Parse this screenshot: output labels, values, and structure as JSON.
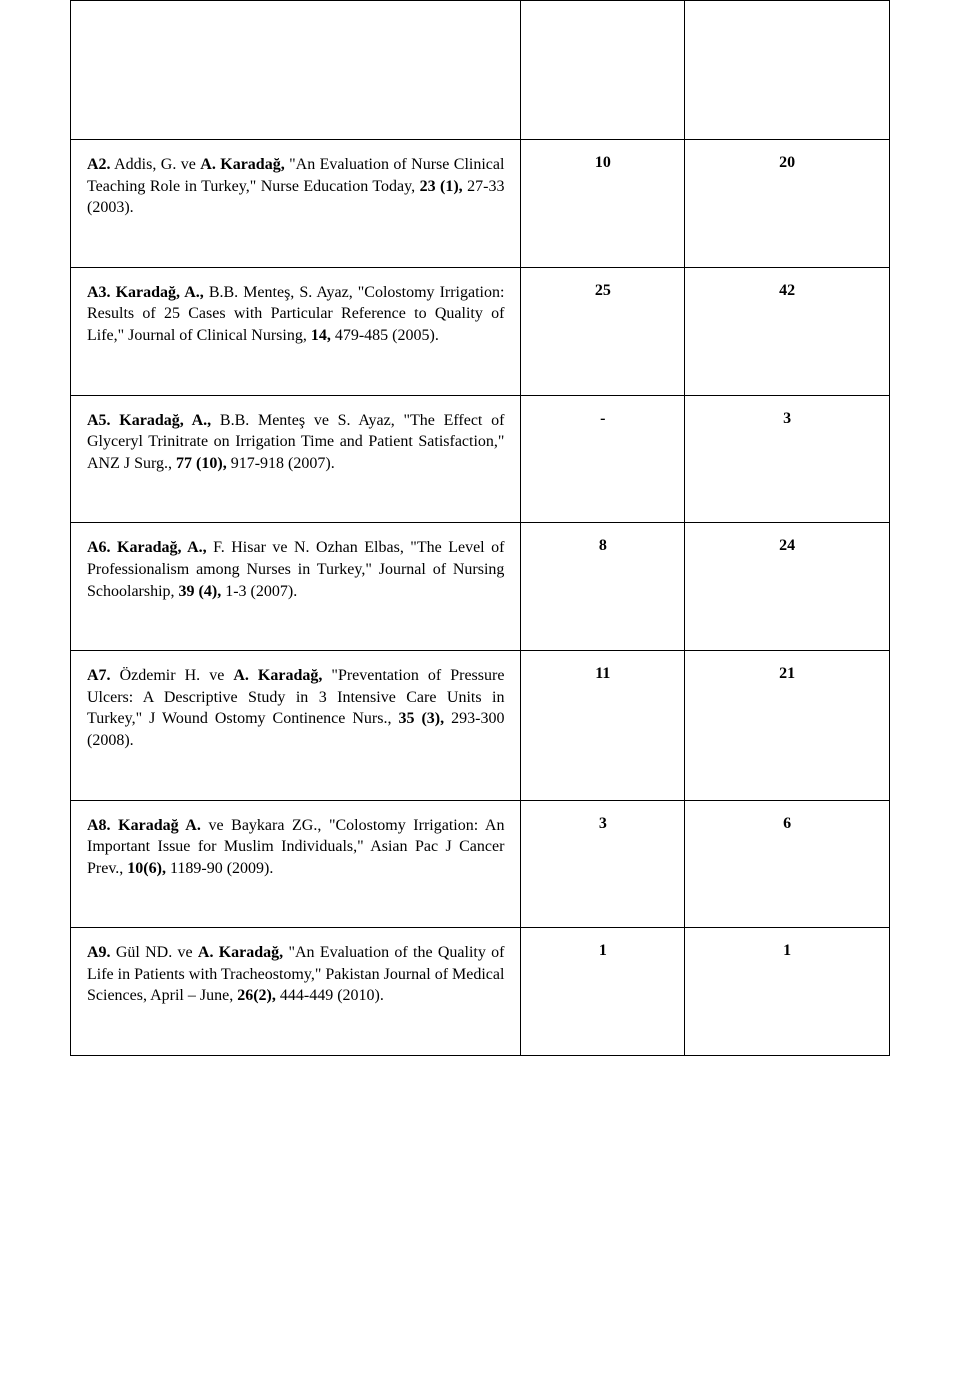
{
  "text_color": "#000000",
  "border_color": "#000000",
  "background_color": "#ffffff",
  "font_family": "Times New Roman",
  "rows": [
    {
      "ref_pre": "",
      "ref_bold1": "A2.",
      "ref_mid1": " Addis, G. ve ",
      "ref_bold2": "A. Karadağ,",
      "ref_mid2": " \"An Evaluation of Nurse Clinical Teaching Role in Turkey,\" Nurse Education Today, ",
      "ref_bold3": "23 (1),",
      "ref_tail": " 27-33 (2003).",
      "col2": "10",
      "col3": "20"
    },
    {
      "ref_pre": "",
      "ref_bold1": "A3. Karadağ, A.,",
      "ref_mid1": " B.B. Menteş, S. Ayaz, \"Colostomy Irrigation: Results of 25 Cases with Particular Reference to Quality of Life,\" Journal of Clinical Nursing, ",
      "ref_bold2": "14,",
      "ref_mid2": " 479-485 (2005).",
      "ref_bold3": "",
      "ref_tail": "",
      "col2": "25",
      "col3": "42"
    },
    {
      "ref_pre": "",
      "ref_bold1": "A5. Karadağ, A.,",
      "ref_mid1": " B.B. Menteş ve S. Ayaz, \"The Effect of Glyceryl Trinitrate on Irrigation Time and Patient Satisfaction,\" ANZ J Surg., ",
      "ref_bold2": "77 (10),",
      "ref_mid2": " 917-918 (2007).",
      "ref_bold3": "",
      "ref_tail": "",
      "col2": "-",
      "col3": "3"
    },
    {
      "ref_pre": "",
      "ref_bold1": "A6. Karadağ, A.,",
      "ref_mid1": " F. Hisar ve N. Ozhan Elbas, \"The Level of  Professionalism among Nurses in Turkey,\" Journal of Nursing Schoolarship, ",
      "ref_bold2": "39 (4),",
      "ref_mid2": " 1-3 (2007).",
      "ref_bold3": "",
      "ref_tail": "",
      "col2": "8",
      "col3": "24"
    },
    {
      "ref_pre": "",
      "ref_bold1": "A7.",
      "ref_mid1": " Özdemir H. ve ",
      "ref_bold2": "A. Karadağ,",
      "ref_mid2": " \"Preventation of Pressure Ulcers: A Descriptive Study in 3 Intensive Care Units in Turkey,\" J Wound Ostomy Continence Nurs., ",
      "ref_bold3": "35 (3),",
      "ref_tail": " 293-300 (2008).",
      "col2": "11",
      "col3": "21"
    },
    {
      "ref_pre": "",
      "ref_bold1": "A8. Karadağ A.",
      "ref_mid1": " ve Baykara ZG., \"Colostomy Irrigation: An Important Issue for Muslim Individuals,\" Asian Pac J Cancer Prev., ",
      "ref_bold2": "10(6),",
      "ref_mid2": " 1189-90 (2009).",
      "ref_bold3": "",
      "ref_tail": "",
      "col2": "3",
      "col3": "6"
    },
    {
      "ref_pre": "",
      "ref_bold1": "A9.",
      "ref_mid1": " Gül ND. ve ",
      "ref_bold2": "A.  Karadağ,",
      "ref_mid2": " \"An Evaluation of the Quality of Life in Patients with Tracheostomy,\" Pakistan Journal of Medical Sciences, April – June, ",
      "ref_bold3": "26(2),",
      "ref_tail": " 444-449 (2010).",
      "col2": "1",
      "col3": "1"
    }
  ]
}
